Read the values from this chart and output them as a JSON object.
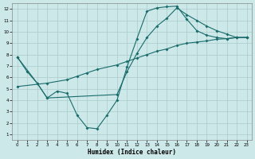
{
  "xlabel": "Humidex (Indice chaleur)",
  "bg_color": "#cce8e8",
  "grid_color": "#aacccc",
  "line_color": "#1a6b6b",
  "xlim_min": -0.5,
  "xlim_max": 23.5,
  "ylim_min": 0.5,
  "ylim_max": 12.5,
  "xticks": [
    0,
    1,
    2,
    3,
    4,
    5,
    6,
    7,
    8,
    9,
    10,
    11,
    12,
    13,
    14,
    15,
    16,
    17,
    18,
    19,
    20,
    21,
    22,
    23
  ],
  "yticks": [
    1,
    2,
    3,
    4,
    5,
    6,
    7,
    8,
    9,
    10,
    11,
    12
  ],
  "line1_x": [
    0,
    1,
    2,
    3,
    4,
    5,
    6,
    7,
    8,
    9,
    10,
    11,
    12,
    13,
    14,
    15,
    16,
    17,
    18,
    19,
    20,
    21,
    22,
    23
  ],
  "line1_y": [
    7.8,
    6.5,
    5.5,
    4.2,
    4.8,
    4.6,
    2.7,
    1.6,
    1.5,
    2.7,
    4.0,
    6.9,
    9.4,
    11.8,
    12.1,
    12.2,
    12.25,
    11.1,
    10.1,
    9.7,
    9.5,
    9.4,
    9.5,
    9.5
  ],
  "line2_x": [
    0,
    3,
    5,
    6,
    7,
    8,
    10,
    11,
    12,
    13,
    14,
    15,
    16,
    17,
    18,
    19,
    20,
    21,
    22,
    23
  ],
  "line2_y": [
    5.2,
    5.5,
    5.8,
    6.1,
    6.4,
    6.7,
    7.1,
    7.4,
    7.7,
    8.0,
    8.3,
    8.5,
    8.8,
    9.0,
    9.1,
    9.2,
    9.35,
    9.4,
    9.5,
    9.5
  ],
  "line3_x": [
    0,
    2,
    3,
    10,
    11,
    12,
    13,
    14,
    15,
    16,
    17,
    18,
    19,
    20,
    21,
    22,
    23
  ],
  "line3_y": [
    7.8,
    5.5,
    4.2,
    4.5,
    6.5,
    8.1,
    9.5,
    10.5,
    11.2,
    12.1,
    11.5,
    11.0,
    10.5,
    10.1,
    9.8,
    9.5,
    9.5
  ]
}
